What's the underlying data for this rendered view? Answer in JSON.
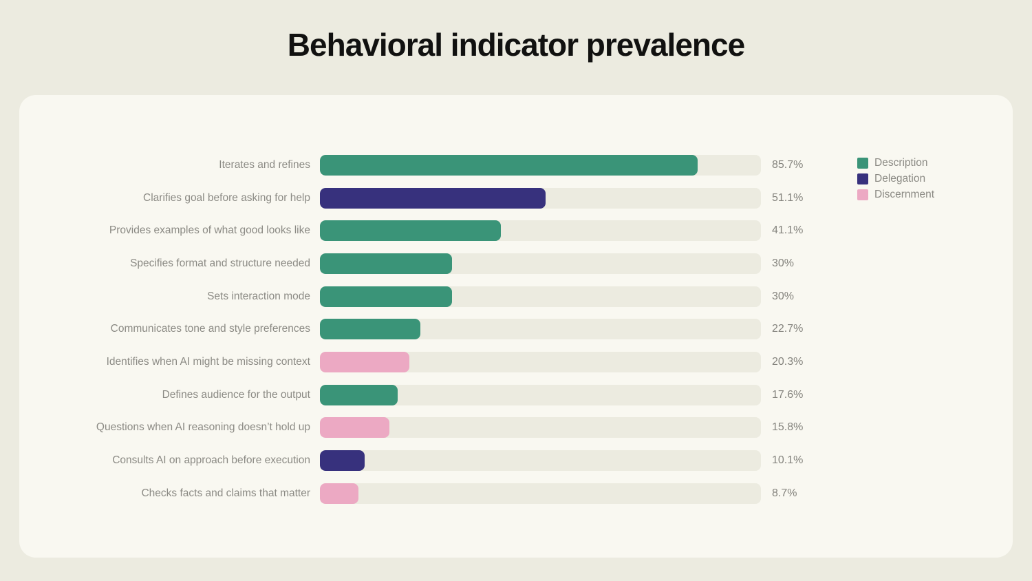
{
  "page": {
    "title": "Behavioral indicator prevalence"
  },
  "colors": {
    "background": "#ECEBE0",
    "card": "#F9F8F1",
    "track": "#ECEBE0",
    "title_text": "#111110",
    "label_text": "#8B8A84",
    "value_text": "#84837D",
    "Description": "#3A9478",
    "Delegation": "#37317D",
    "Discernment": "#ECA9C3"
  },
  "legend": {
    "position": "top-right",
    "items": [
      {
        "label": "Description",
        "color": "#3A9478"
      },
      {
        "label": "Delegation",
        "color": "#37317D"
      },
      {
        "label": "Discernment",
        "color": "#ECA9C3"
      }
    ]
  },
  "chart_data": {
    "type": "bar",
    "orientation": "horizontal",
    "title": "Behavioral indicator prevalence",
    "xlabel": "",
    "ylabel": "",
    "xlim": [
      0,
      100
    ],
    "grid": false,
    "value_suffix": "%",
    "rows": [
      {
        "label": "Iterates and refines",
        "value": 85.7,
        "display": "85.7%",
        "category": "Description"
      },
      {
        "label": "Clarifies goal before asking for help",
        "value": 51.1,
        "display": "51.1%",
        "category": "Delegation"
      },
      {
        "label": "Provides examples of what good looks like",
        "value": 41.1,
        "display": "41.1%",
        "category": "Description"
      },
      {
        "label": "Specifies format and structure needed",
        "value": 30,
        "display": "30%",
        "category": "Description"
      },
      {
        "label": "Sets interaction mode",
        "value": 30,
        "display": "30%",
        "category": "Description"
      },
      {
        "label": "Communicates tone and style preferences",
        "value": 22.7,
        "display": "22.7%",
        "category": "Description"
      },
      {
        "label": "Identifies when AI might be missing context",
        "value": 20.3,
        "display": "20.3%",
        "category": "Discernment"
      },
      {
        "label": "Defines audience for the output",
        "value": 17.6,
        "display": "17.6%",
        "category": "Description"
      },
      {
        "label": "Questions when AI reasoning doesn’t hold up",
        "value": 15.8,
        "display": "15.8%",
        "category": "Discernment"
      },
      {
        "label": "Consults AI on approach before execution",
        "value": 10.1,
        "display": "10.1%",
        "category": "Delegation"
      },
      {
        "label": "Checks facts and claims that matter",
        "value": 8.7,
        "display": "8.7%",
        "category": "Discernment"
      }
    ]
  }
}
